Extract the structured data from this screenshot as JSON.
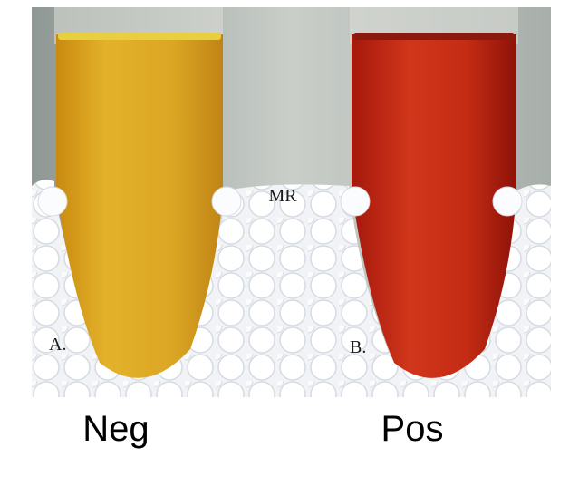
{
  "photo": {
    "labels": {
      "test": "MR",
      "left": "A.",
      "right": "B."
    }
  },
  "captions": {
    "left": "Neg",
    "right": "Pos"
  }
}
